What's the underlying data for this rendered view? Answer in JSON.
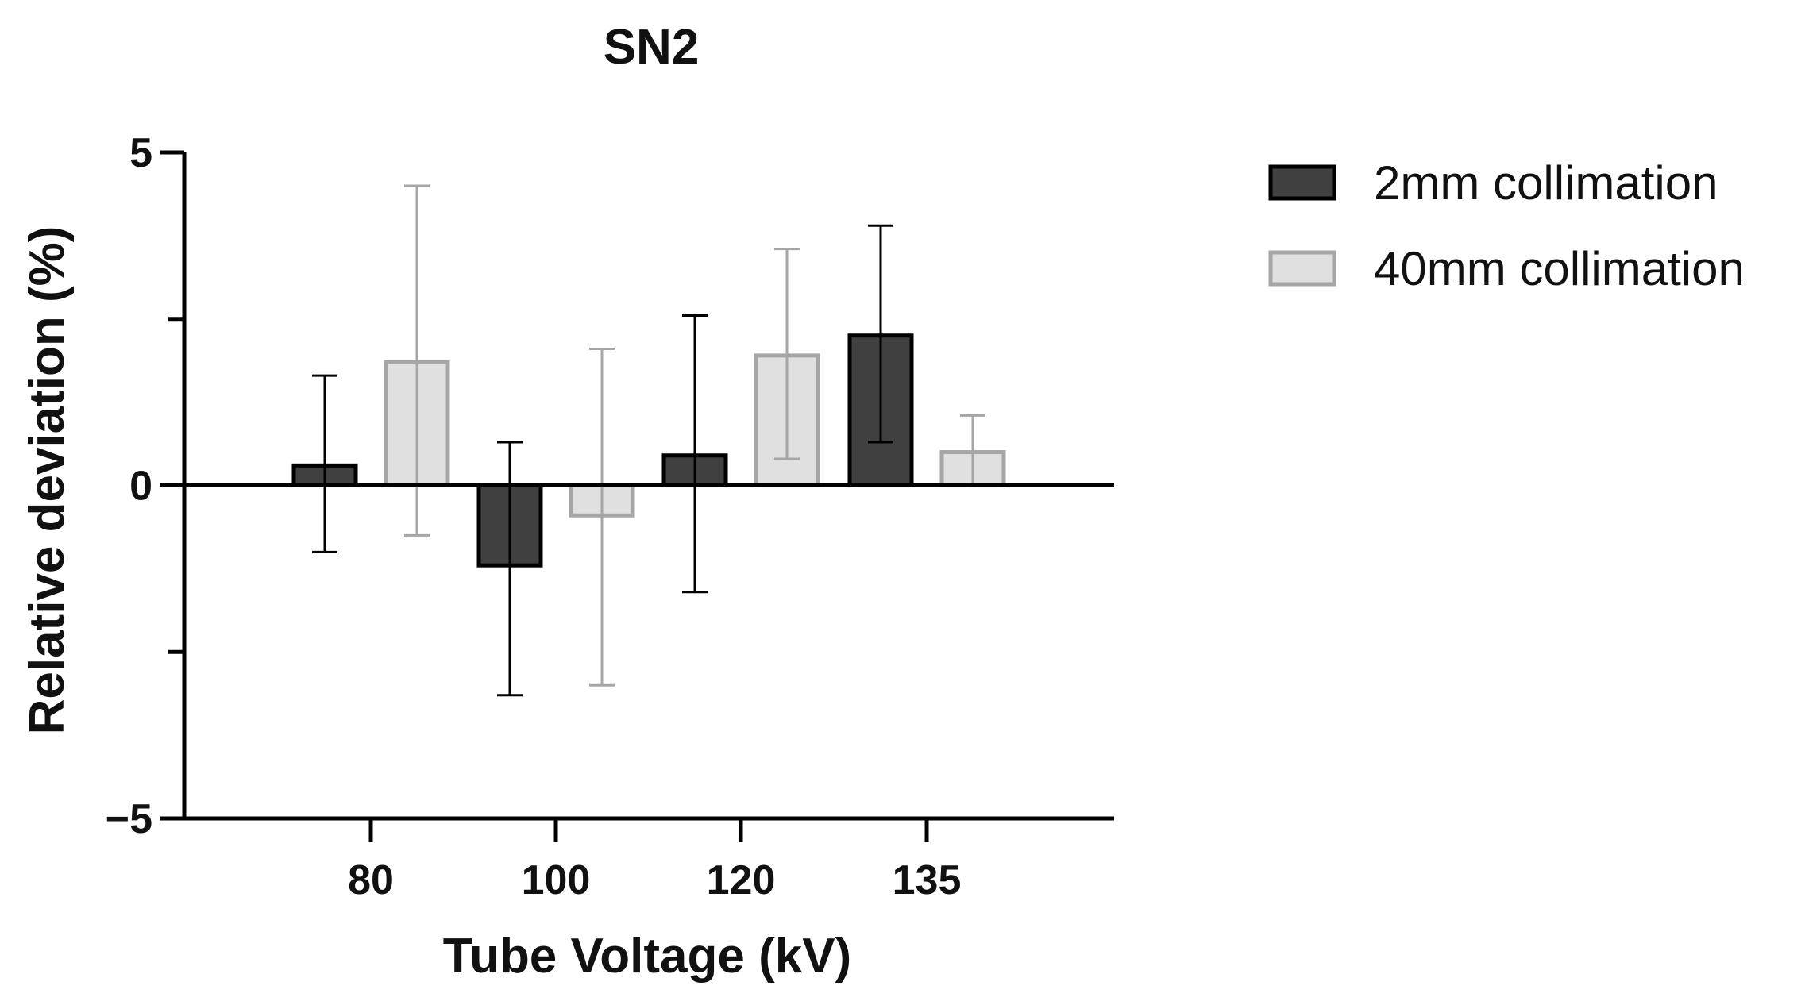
{
  "chart_data": {
    "type": "bar",
    "title": "SN2",
    "xlabel": "Tube Voltage (kV)",
    "ylabel": "Relative deviation (%)",
    "categories": [
      "80",
      "100",
      "120",
      "135"
    ],
    "ylim": [
      -5,
      5
    ],
    "yticks": [
      {
        "value": 5,
        "label": "5"
      },
      {
        "value": 0,
        "label": "0"
      },
      {
        "value": -5,
        "label": "−5"
      }
    ],
    "series": [
      {
        "name": "2mm collimation",
        "fill": "#404040",
        "stroke": "#000000",
        "error_color": "#000000",
        "values": [
          0.3,
          -1.2,
          0.45,
          2.25
        ],
        "error_low": [
          -1.0,
          -3.15,
          -1.6,
          0.65
        ],
        "error_high": [
          1.65,
          0.65,
          2.55,
          3.9
        ]
      },
      {
        "name": "40mm collimation",
        "fill": "#e0e0e0",
        "stroke": "#a6a6a6",
        "error_color": "#a6a6a6",
        "values": [
          1.85,
          -0.45,
          1.95,
          0.5
        ],
        "error_low": [
          -0.75,
          -3.0,
          0.4,
          0.0
        ],
        "error_high": [
          4.5,
          2.05,
          3.55,
          1.05
        ]
      }
    ]
  }
}
